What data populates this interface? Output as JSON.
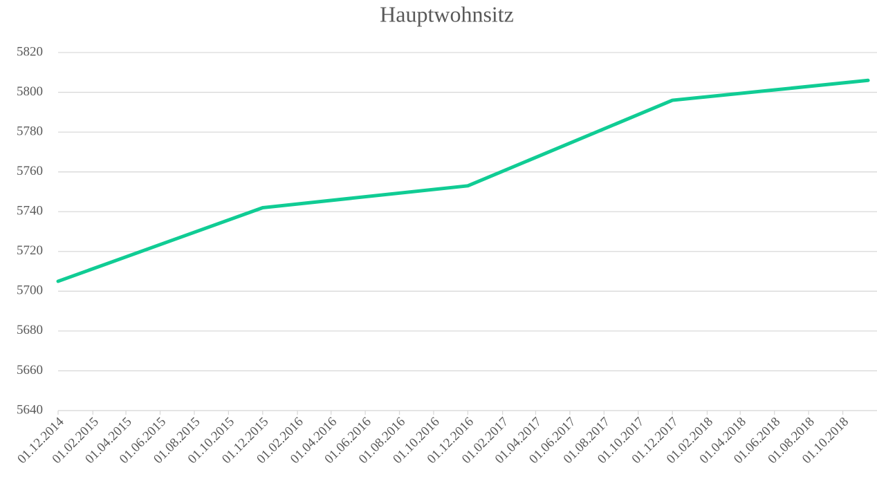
{
  "chart_data": {
    "type": "line",
    "title": "Hauptwohnsitz",
    "x": [
      "2014-12-01",
      "2015-12-01",
      "2016-12-01",
      "2017-12-01",
      "2018-11-15"
    ],
    "series": [
      {
        "name": "Hauptwohnsitz",
        "color": "#10cc94",
        "values": [
          5705,
          5742,
          5753,
          5796,
          5806
        ]
      }
    ],
    "xlim": [
      "2014-12-01",
      "2018-12-01"
    ],
    "xticks": [
      {
        "value": "2014-12-01",
        "label": "01.12.2014"
      },
      {
        "value": "2015-02-01",
        "label": "01.02.2015"
      },
      {
        "value": "2015-04-01",
        "label": "01.04.2015"
      },
      {
        "value": "2015-06-01",
        "label": "01.06.2015"
      },
      {
        "value": "2015-08-01",
        "label": "01.08.2015"
      },
      {
        "value": "2015-10-01",
        "label": "01.10.2015"
      },
      {
        "value": "2015-12-01",
        "label": "01.12.2015"
      },
      {
        "value": "2016-02-01",
        "label": "01.02.2016"
      },
      {
        "value": "2016-04-01",
        "label": "01.04.2016"
      },
      {
        "value": "2016-06-01",
        "label": "01.06.2016"
      },
      {
        "value": "2016-08-01",
        "label": "01.08.2016"
      },
      {
        "value": "2016-10-01",
        "label": "01.10.2016"
      },
      {
        "value": "2016-12-01",
        "label": "01.12.2016"
      },
      {
        "value": "2017-02-01",
        "label": "01.02.2017"
      },
      {
        "value": "2017-04-01",
        "label": "01.04.2017"
      },
      {
        "value": "2017-06-01",
        "label": "01.06.2017"
      },
      {
        "value": "2017-08-01",
        "label": "01.08.2017"
      },
      {
        "value": "2017-10-01",
        "label": "01.10.2017"
      },
      {
        "value": "2017-12-01",
        "label": "01.12.2017"
      },
      {
        "value": "2018-02-01",
        "label": "01.02.2018"
      },
      {
        "value": "2018-04-01",
        "label": "01.04.2018"
      },
      {
        "value": "2018-06-01",
        "label": "01.06.2018"
      },
      {
        "value": "2018-08-01",
        "label": "01.08.2018"
      },
      {
        "value": "2018-10-01",
        "label": "01.10.2018"
      }
    ],
    "ylim": [
      5640,
      5820
    ],
    "yticks": [
      5640,
      5660,
      5680,
      5700,
      5720,
      5740,
      5760,
      5780,
      5800,
      5820
    ],
    "grid": true
  }
}
